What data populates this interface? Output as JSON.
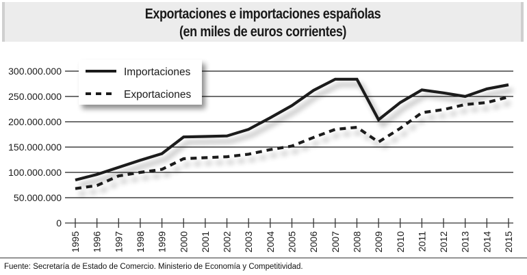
{
  "chart_data": {
    "type": "line",
    "title": "Exportaciones e importaciones españolas",
    "subtitle": "(en miles de euros corrientes)",
    "xlabel": "",
    "ylabel": "",
    "x": [
      "1995",
      "1996",
      "1997",
      "1998",
      "1999",
      "2000",
      "2001",
      "2002",
      "2003",
      "2004",
      "2005",
      "2006",
      "2007",
      "2008",
      "2009",
      "2010",
      "2011",
      "2012",
      "2013",
      "2014",
      "2015"
    ],
    "ylim": [
      0,
      300000000
    ],
    "yticks": [
      0,
      50000000,
      100000000,
      150000000,
      200000000,
      250000000,
      300000000
    ],
    "ytick_labels": [
      "0",
      "50.000.000",
      "100.000.000",
      "150.000.000",
      "200.000.000",
      "250.000.000",
      "300.000.000"
    ],
    "grid": true,
    "legend_position": "top-left",
    "series": [
      {
        "name": "Importaciones",
        "style": "solid",
        "color": "#1a1a1a",
        "values": [
          85000000,
          96000000,
          110000000,
          124000000,
          137000000,
          170000000,
          171000000,
          172000000,
          185000000,
          208000000,
          232000000,
          262000000,
          284000000,
          284000000,
          204000000,
          238000000,
          263000000,
          257000000,
          250000000,
          265000000,
          273000000
        ]
      },
      {
        "name": "Exportaciones",
        "style": "dashed",
        "color": "#1a1a1a",
        "values": [
          68000000,
          74000000,
          93000000,
          100000000,
          106000000,
          127000000,
          129000000,
          131000000,
          136000000,
          145000000,
          152000000,
          169000000,
          185000000,
          189000000,
          160000000,
          187000000,
          218000000,
          224000000,
          234000000,
          238000000,
          249000000
        ]
      }
    ]
  },
  "source_note": "Fuente: Secretaría de Estado de Comercio. Ministerio de Economía y Competitividad.",
  "colors": {
    "title_band": "#ececec",
    "grid": "#1a1a1a",
    "line": "#1a1a1a"
  }
}
